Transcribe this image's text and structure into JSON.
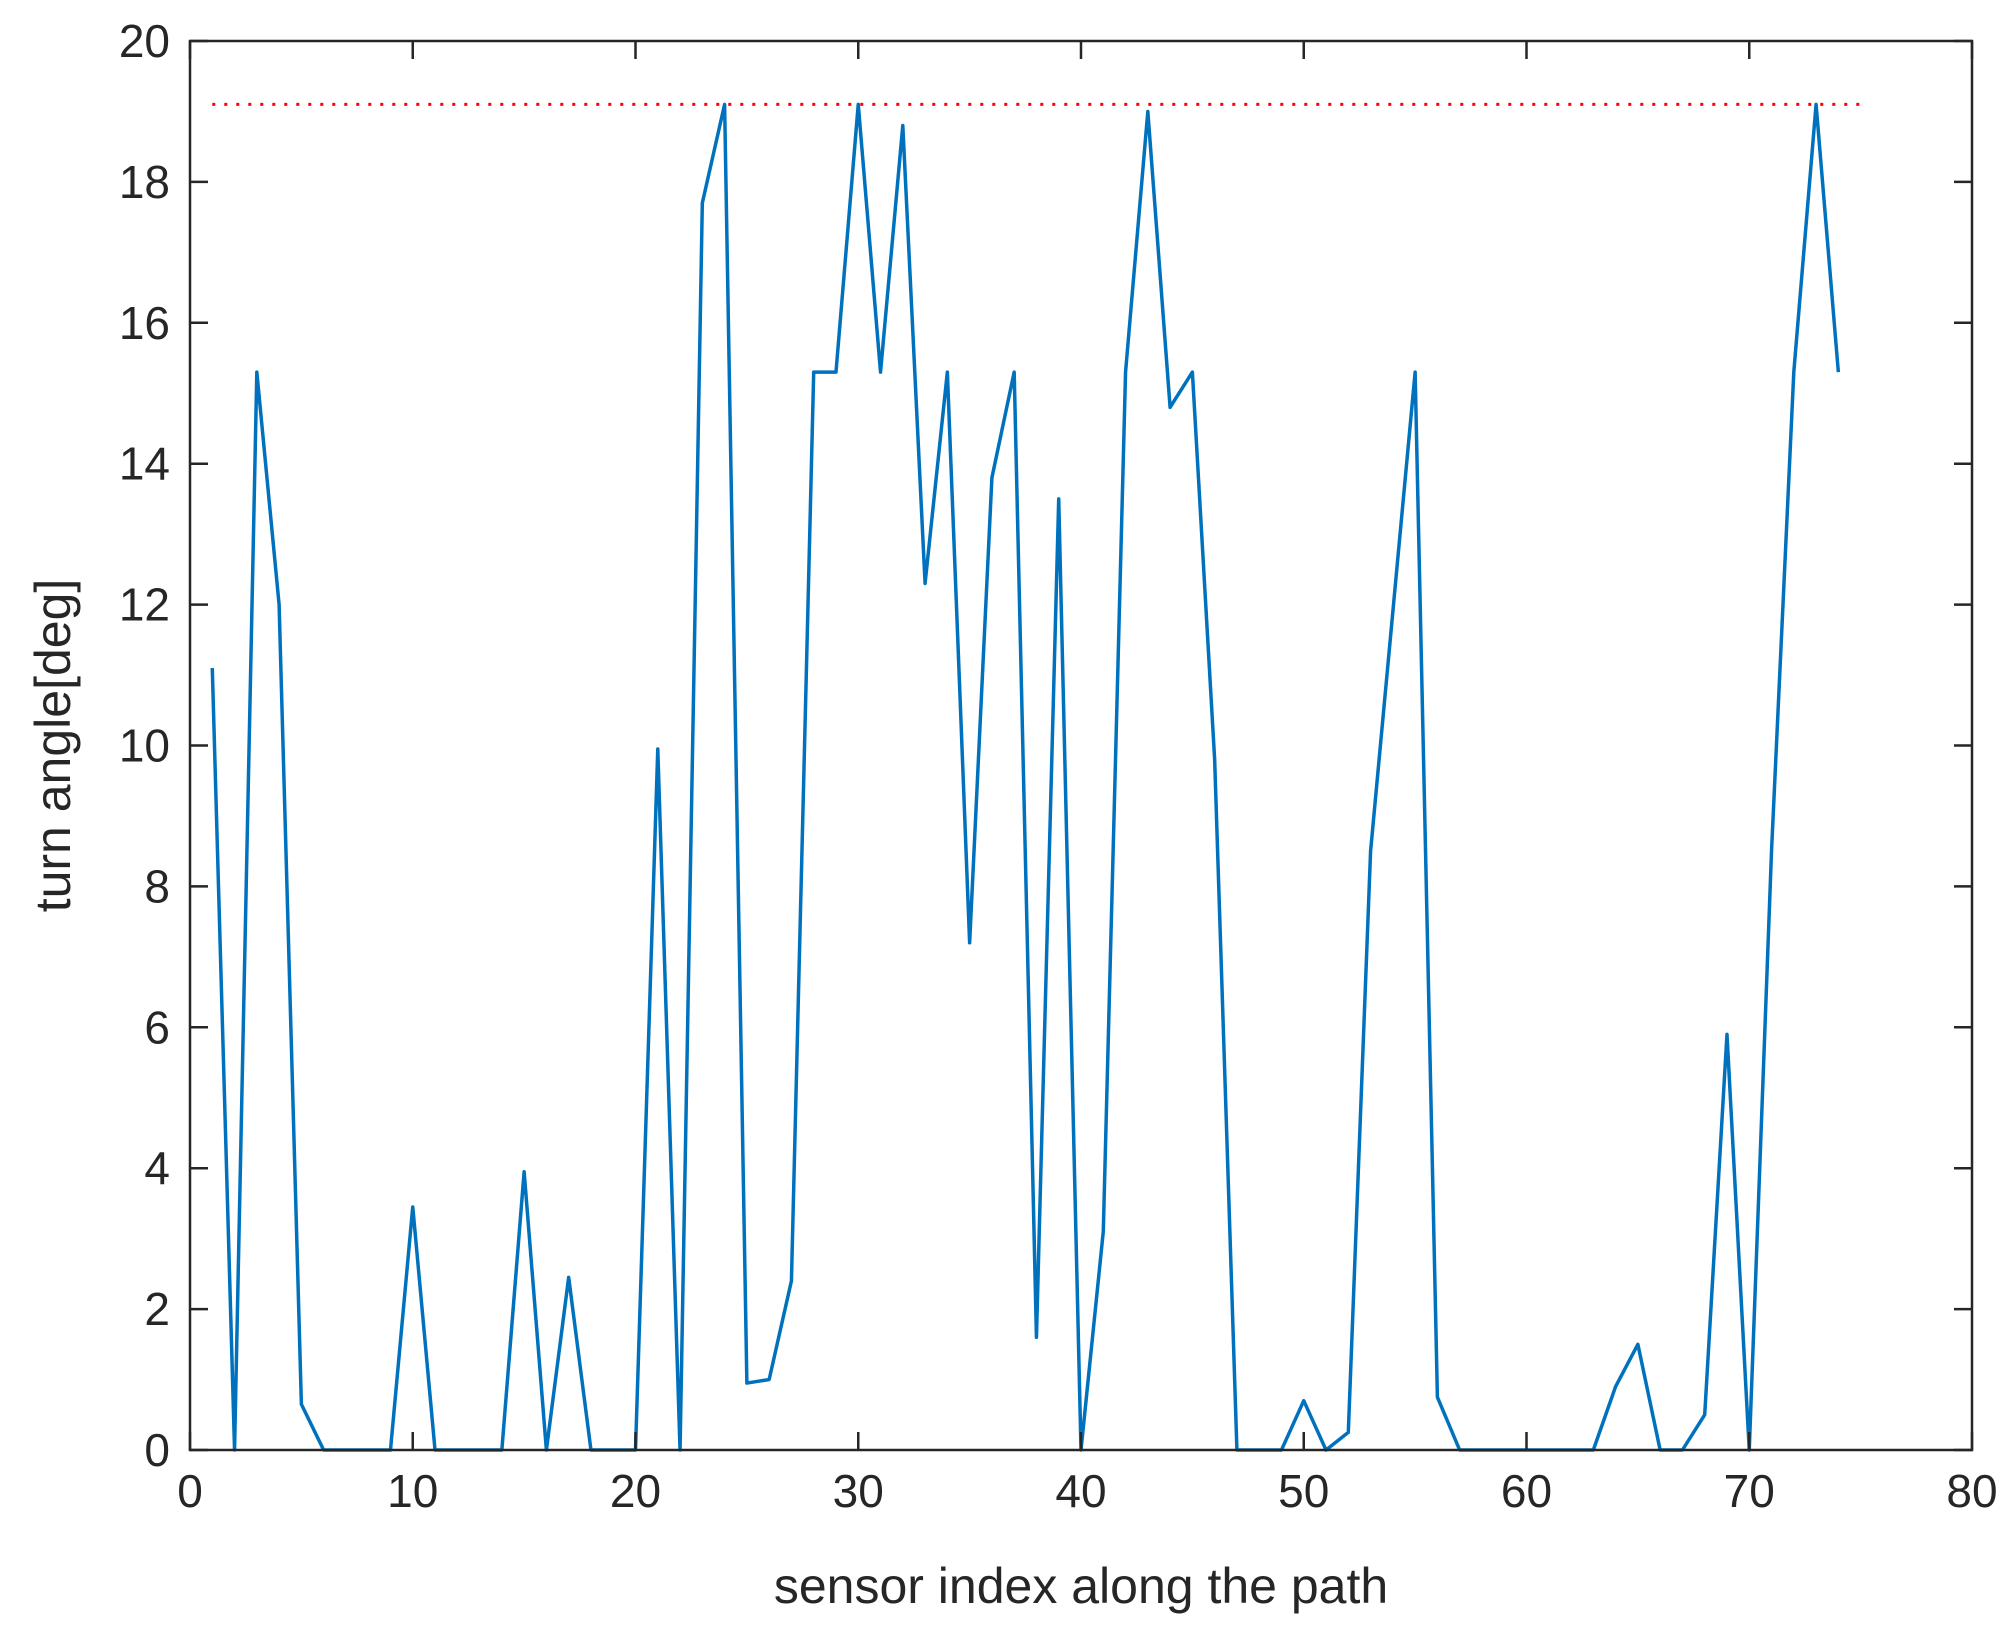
{
  "chart_data": {
    "type": "line",
    "title": "",
    "xlabel": "sensor index along the path",
    "ylabel": "turn angle[deg]",
    "xlim": [
      0,
      80
    ],
    "ylim": [
      0,
      20
    ],
    "xticks": [
      0,
      10,
      20,
      30,
      40,
      50,
      60,
      70,
      80
    ],
    "yticks": [
      0,
      2,
      4,
      6,
      8,
      10,
      12,
      14,
      16,
      18,
      20
    ],
    "grid": false,
    "legend": "none",
    "box": true,
    "series": [
      {
        "color": "#0072BD",
        "style": "solid",
        "x": [
          1,
          2,
          3,
          4,
          5,
          6,
          7,
          8,
          9,
          10,
          11,
          12,
          13,
          14,
          15,
          16,
          17,
          18,
          19,
          20,
          21,
          22,
          23,
          24,
          25,
          26,
          27,
          28,
          29,
          30,
          31,
          32,
          33,
          34,
          35,
          36,
          37,
          38,
          39,
          40,
          41,
          42,
          43,
          44,
          45,
          46,
          47,
          48,
          49,
          50,
          51,
          52,
          53,
          54,
          55,
          56,
          57,
          58,
          59,
          60,
          61,
          62,
          63,
          64,
          65,
          66,
          67,
          68,
          69,
          70,
          71,
          72,
          73,
          74
        ],
        "y": [
          11.1,
          0,
          15.3,
          12.0,
          0.65,
          0,
          0,
          0,
          0,
          3.45,
          0,
          0,
          0,
          0,
          3.95,
          0,
          2.45,
          0,
          0,
          0,
          9.95,
          0,
          17.7,
          19.1,
          0.95,
          1.0,
          2.4,
          15.3,
          15.3,
          19.1,
          15.3,
          18.8,
          12.3,
          15.3,
          7.2,
          13.8,
          15.3,
          1.6,
          13.5,
          0,
          3.1,
          15.3,
          19.0,
          14.8,
          15.3,
          9.8,
          0,
          0,
          0,
          0.7,
          0,
          0.25,
          8.5,
          11.9,
          15.3,
          0.75,
          0,
          0,
          0,
          0,
          0,
          0,
          0,
          0.9,
          1.5,
          0,
          0,
          0.5,
          5.9,
          0,
          8.5,
          15.3,
          19.1,
          15.3
        ]
      },
      {
        "color": "#FF0000",
        "style": "dotted",
        "x": [
          1,
          75
        ],
        "y": [
          19.1,
          19.1
        ]
      }
    ]
  }
}
